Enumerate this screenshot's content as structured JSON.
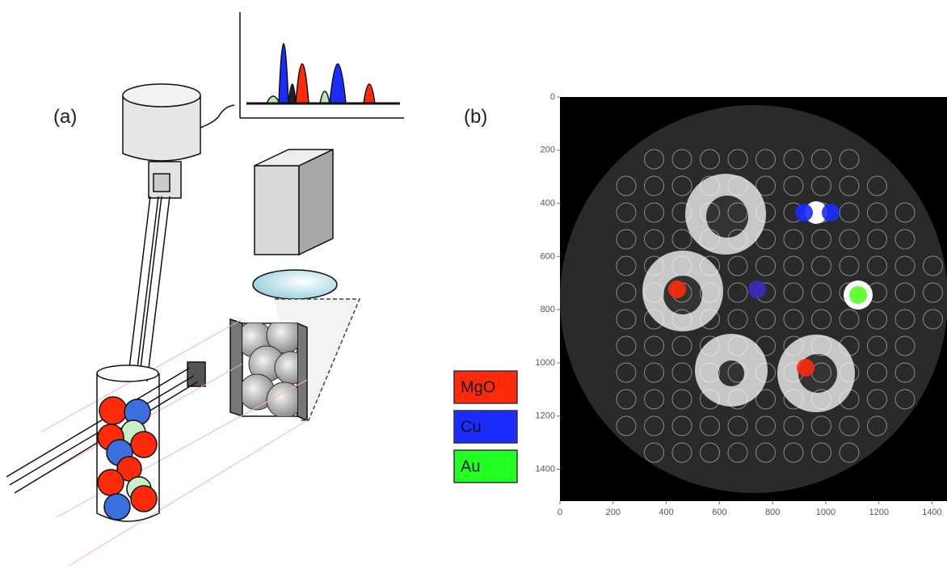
{
  "panel_a": {
    "label": "(a)"
  },
  "panel_b": {
    "label": "(b)",
    "xlim": [
      0,
      1520
    ],
    "ylim": [
      0,
      1520
    ],
    "xticks": [
      0,
      200,
      400,
      600,
      800,
      1000,
      1200,
      1400
    ],
    "yticks": [
      0,
      200,
      400,
      600,
      800,
      1000,
      1200,
      1400
    ]
  },
  "legend": [
    {
      "name": "MgO",
      "color": "#ff2a0a"
    },
    {
      "name": "Cu",
      "color": "#1a2cff"
    },
    {
      "name": "Au",
      "color": "#22ff22"
    }
  ]
}
